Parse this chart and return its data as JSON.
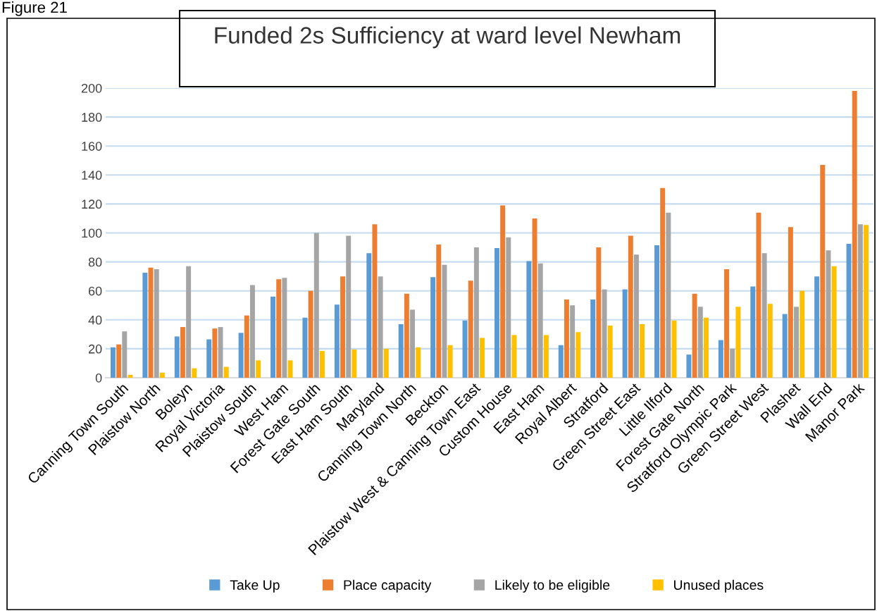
{
  "chart_data": {
    "type": "bar",
    "title": "Funded 2s Sufficiency at ward level Newham",
    "annotations": [
      "Figure 21"
    ],
    "categories": [
      "Canning Town South",
      "Plaistow North",
      "Boleyn",
      "Royal Victoria",
      "Plaistow South",
      "West Ham",
      "Forest Gate South",
      "East Ham South",
      "Maryland",
      "Canning Town North",
      "Beckton",
      "Plaistow West & Canning Town East",
      "Custom House",
      "East Ham",
      "Royal Albert",
      "Stratford",
      "Green Street East",
      "Little Ilford",
      "Forest Gate North",
      "Stratford Olympic Park",
      "Green Street West",
      "Plashet",
      "Wall End",
      "Manor Park"
    ],
    "series": [
      {
        "name": "Take Up",
        "color": "#5b9bd5",
        "values": [
          21,
          72.5,
          28.5,
          26.5,
          31,
          56,
          41.5,
          50.5,
          86,
          37,
          69.5,
          39.5,
          89.5,
          80.5,
          22.5,
          54,
          61,
          91.5,
          16,
          26,
          63,
          44,
          70,
          92.5
        ]
      },
      {
        "name": "Place capacity",
        "color": "#ed7d31",
        "values": [
          23,
          76,
          35,
          34,
          43,
          68,
          60,
          70,
          106,
          58,
          92,
          67,
          119,
          110,
          54,
          90,
          98,
          131,
          58,
          75,
          114,
          104,
          147,
          198
        ]
      },
      {
        "name": "Likely to be eligible",
        "color": "#a5a5a5",
        "values": [
          32,
          75,
          77,
          35,
          64,
          69,
          100,
          98,
          70,
          47,
          78,
          90,
          97,
          79,
          50,
          61,
          85,
          114,
          49,
          20,
          86,
          49,
          88,
          106
        ]
      },
      {
        "name": "Unused places",
        "color": "#ffc000",
        "values": [
          2,
          3.5,
          6.5,
          7.5,
          12,
          12,
          18.5,
          19.5,
          20,
          21,
          22.5,
          27.5,
          29.5,
          29.5,
          31.5,
          36,
          37,
          39.5,
          41.5,
          49,
          51,
          60,
          77,
          105.5
        ]
      }
    ],
    "ylim": [
      0,
      200
    ],
    "yticks": [
      0,
      20,
      40,
      60,
      80,
      100,
      120,
      140,
      160,
      180,
      200
    ],
    "grid": "y",
    "legend": "bottom"
  }
}
